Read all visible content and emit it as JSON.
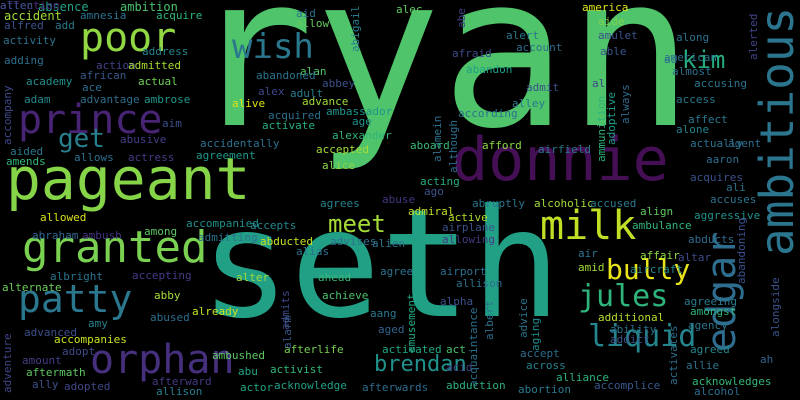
{
  "words": [
    {
      "text": "ryan",
      "color": "#4fc46a"
    },
    {
      "text": "seth",
      "color": "#21a086"
    },
    {
      "text": "pageant",
      "color": "#86d549"
    },
    {
      "text": "donnie",
      "color": "#440f54"
    },
    {
      "text": "ambitious",
      "color": "#2b768e"
    },
    {
      "text": "edgar",
      "color": "#2e6d8e"
    },
    {
      "text": "granted",
      "color": "#7ad151"
    },
    {
      "text": "prince",
      "color": "#482475"
    },
    {
      "text": "patty",
      "color": "#2a778e"
    },
    {
      "text": "orphan",
      "color": "#46307e"
    },
    {
      "text": "poor",
      "color": "#90d743"
    },
    {
      "text": "wish",
      "color": "#2a788e"
    },
    {
      "text": "milk",
      "color": "#c0df25"
    },
    {
      "text": "liquid",
      "color": "#25858e"
    },
    {
      "text": "jules",
      "color": "#2fb47c"
    },
    {
      "text": "bully",
      "color": "#e7e419"
    },
    {
      "text": "meet",
      "color": "#a5db36"
    },
    {
      "text": "get",
      "color": "#277f8e"
    },
    {
      "text": "kim",
      "color": "#25ac82"
    },
    {
      "text": "brendan",
      "color": "#21918c"
    },
    {
      "text": "absence",
      "color": "#20a386"
    },
    {
      "text": "ambition",
      "color": "#4ac16d"
    },
    {
      "text": "accident",
      "color": "#a2da37"
    },
    {
      "text": "alfred",
      "color": "#3b528b"
    },
    {
      "text": "add",
      "color": "#2a788e"
    },
    {
      "text": "activity",
      "color": "#2c728e"
    },
    {
      "text": "adding",
      "color": "#2d708e"
    },
    {
      "text": "academy",
      "color": "#21918c"
    },
    {
      "text": "adam",
      "color": "#24878e"
    },
    {
      "text": "accompany",
      "color": "#3e4a89"
    },
    {
      "text": "aided",
      "color": "#2a788e"
    },
    {
      "text": "amends",
      "color": "#35b779"
    },
    {
      "text": "alive",
      "color": "#dde318"
    },
    {
      "text": "allowed",
      "color": "#d8e219"
    },
    {
      "text": "abraham",
      "color": "#31688e"
    },
    {
      "text": "ambush",
      "color": "#453581"
    },
    {
      "text": "albright",
      "color": "#2c738e"
    },
    {
      "text": "alternate",
      "color": "#6ccd5a"
    },
    {
      "text": "advanced",
      "color": "#3c4f8a"
    },
    {
      "text": "amount",
      "color": "#433e85"
    },
    {
      "text": "adventure",
      "color": "#414487"
    },
    {
      "text": "aftermath",
      "color": "#5ec962"
    },
    {
      "text": "ally",
      "color": "#3b528b"
    },
    {
      "text": "adopted",
      "color": "#404688"
    },
    {
      "text": "adopt",
      "color": "#3e4c8a"
    },
    {
      "text": "accompanies",
      "color": "#cae11f"
    },
    {
      "text": "amy",
      "color": "#26828e"
    },
    {
      "text": "afterward",
      "color": "#443a83"
    },
    {
      "text": "allison",
      "color": "#287d8e"
    },
    {
      "text": "aid",
      "color": "#2c718e"
    },
    {
      "text": "allow",
      "color": "#63cb5f"
    },
    {
      "text": "abigail",
      "color": "#27808e"
    },
    {
      "text": "alec",
      "color": "#60ca60"
    },
    {
      "text": "abe",
      "color": "#424086"
    },
    {
      "text": "america",
      "color": "#dae319"
    },
    {
      "text": "aide",
      "color": "#7fd34e"
    },
    {
      "text": "amulet",
      "color": "#3b528b"
    },
    {
      "text": "able",
      "color": "#39558c"
    },
    {
      "text": "alerted",
      "color": "#404588"
    },
    {
      "text": "acquire",
      "color": "#2fb47c"
    },
    {
      "text": "amnesia",
      "color": "#2c728e"
    },
    {
      "text": "african",
      "color": "#38588c"
    },
    {
      "text": "ace",
      "color": "#2e6d8e"
    },
    {
      "text": "advantage",
      "color": "#2e6e8e"
    },
    {
      "text": "action",
      "color": "#414487"
    },
    {
      "text": "admitted",
      "color": "#a8db34"
    },
    {
      "text": "actual",
      "color": "#70cf57"
    },
    {
      "text": "ambrose",
      "color": "#1f978b"
    },
    {
      "text": "address",
      "color": "#26828e"
    },
    {
      "text": "aim",
      "color": "#3b518b"
    },
    {
      "text": "abusive",
      "color": "#424086"
    },
    {
      "text": "actress",
      "color": "#443b84"
    },
    {
      "text": "allows",
      "color": "#2e6f8e"
    },
    {
      "text": "aging",
      "color": "#23898e"
    },
    {
      "text": "among",
      "color": "#5ec962"
    },
    {
      "text": "accompanied",
      "color": "#21908d"
    },
    {
      "text": "admitting",
      "color": "#2c728e"
    },
    {
      "text": "accepting",
      "color": "#443b84"
    },
    {
      "text": "abused",
      "color": "#2e6e8e"
    },
    {
      "text": "abby",
      "color": "#a5db36"
    },
    {
      "text": "affection",
      "color": "#472d7b"
    },
    {
      "text": "allen",
      "color": "#3b528b"
    },
    {
      "text": "already",
      "color": "#c8e020"
    },
    {
      "text": "admits",
      "color": "#3e4989"
    },
    {
      "text": "ambushed",
      "color": "#5dc863"
    },
    {
      "text": "abu",
      "color": "#22a785"
    },
    {
      "text": "actor",
      "color": "#21a585"
    },
    {
      "text": "acknowledge",
      "color": "#1fa088"
    },
    {
      "text": "activist",
      "color": "#35b779"
    },
    {
      "text": "afterlife",
      "color": "#75d054"
    },
    {
      "text": "alarm",
      "color": "#38588c"
    },
    {
      "text": "abbey",
      "color": "#3b528b"
    },
    {
      "text": "alan",
      "color": "#56c667"
    },
    {
      "text": "alex",
      "color": "#3f4889"
    },
    {
      "text": "adult",
      "color": "#297b8e"
    },
    {
      "text": "abandoned",
      "color": "#2c728e"
    },
    {
      "text": "ambassador",
      "color": "#1f958b"
    },
    {
      "text": "advance",
      "color": "#a0da39"
    },
    {
      "text": "acquired",
      "color": "#2d708e"
    },
    {
      "text": "activate",
      "color": "#28ae80"
    },
    {
      "text": "age",
      "color": "#20928c"
    },
    {
      "text": "alexander",
      "color": "#31b57b"
    },
    {
      "text": "accidentally",
      "color": "#2d708e"
    },
    {
      "text": "agreement",
      "color": "#1f998a"
    },
    {
      "text": "alice",
      "color": "#8bd646"
    },
    {
      "text": "accepted",
      "color": "#a5db36"
    },
    {
      "text": "acting",
      "color": "#26ad81"
    },
    {
      "text": "ago",
      "color": "#3b528b"
    },
    {
      "text": "agrees",
      "color": "#26828e"
    },
    {
      "text": "abuse",
      "color": "#46337f"
    },
    {
      "text": "admiral",
      "color": "#c2df23"
    },
    {
      "text": "accepts",
      "color": "#24878e"
    },
    {
      "text": "abducted",
      "color": "#c5e021"
    },
    {
      "text": "advises",
      "color": "#2e6e8e"
    },
    {
      "text": "alias",
      "color": "#2c718e"
    },
    {
      "text": "ahead",
      "color": "#37b878"
    },
    {
      "text": "alter",
      "color": "#a0da39"
    },
    {
      "text": "agree",
      "color": "#2c738e"
    },
    {
      "text": "achieve",
      "color": "#4ac16d"
    },
    {
      "text": "aang",
      "color": "#2a788e"
    },
    {
      "text": "aged",
      "color": "#33638d"
    },
    {
      "text": "alien",
      "color": "#2c738e"
    },
    {
      "text": "activated",
      "color": "#22a884"
    },
    {
      "text": "afterwards",
      "color": "#2f6c8e"
    },
    {
      "text": "amusement",
      "color": "#22a884"
    },
    {
      "text": "abandon",
      "color": "#1fa188"
    },
    {
      "text": "afraid",
      "color": "#3e4a89"
    },
    {
      "text": "alert",
      "color": "#2a788e"
    },
    {
      "text": "account",
      "color": "#2f6c8e"
    },
    {
      "text": "admit",
      "color": "#3b528b"
    },
    {
      "text": "alley",
      "color": "#2a788e"
    },
    {
      "text": "according",
      "color": "#2c728e"
    },
    {
      "text": "alamein",
      "color": "#2d708e"
    },
    {
      "text": "although",
      "color": "#2e6e8e"
    },
    {
      "text": "al",
      "color": "#404588"
    },
    {
      "text": "ammunition",
      "color": "#2fb47c"
    },
    {
      "text": "adoptive",
      "color": "#1f9a8a"
    },
    {
      "text": "always",
      "color": "#2f6b8e"
    },
    {
      "text": "aboard",
      "color": "#37b878"
    },
    {
      "text": "afford",
      "color": "#8bd646"
    },
    {
      "text": "airfield",
      "color": "#2b758e"
    },
    {
      "text": "abruptly",
      "color": "#2c738e"
    },
    {
      "text": "alcoholic",
      "color": "#a0da39"
    },
    {
      "text": "accused",
      "color": "#2a788e"
    },
    {
      "text": "active",
      "color": "#b2dd2d"
    },
    {
      "text": "airplane",
      "color": "#3b528b"
    },
    {
      "text": "allowing",
      "color": "#443b84"
    },
    {
      "text": "align",
      "color": "#60ca60"
    },
    {
      "text": "ambulance",
      "color": "#31b57b"
    },
    {
      "text": "affair",
      "color": "#8fd744"
    },
    {
      "text": "air",
      "color": "#2c728e"
    },
    {
      "text": "aircraft",
      "color": "#24878e"
    },
    {
      "text": "altar",
      "color": "#3e4989"
    },
    {
      "text": "airport",
      "color": "#2e6e8e"
    },
    {
      "text": "allison2",
      "color": "#2e6e8e"
    },
    {
      "text": "alpha",
      "color": "#3b528b"
    },
    {
      "text": "albert",
      "color": "#2d708e"
    },
    {
      "text": "advice",
      "color": "#2c738e"
    },
    {
      "text": "acquaintance",
      "color": "#2d708e"
    },
    {
      "text": "act",
      "color": "#4ac16d"
    },
    {
      "text": "accept",
      "color": "#2e6d8e"
    },
    {
      "text": "across",
      "color": "#26828e"
    },
    {
      "text": "alliance",
      "color": "#2fb47c"
    },
    {
      "text": "abortion",
      "color": "#2a788e"
    },
    {
      "text": "acid",
      "color": "#404588"
    },
    {
      "text": "abduction",
      "color": "#2cb17e"
    },
    {
      "text": "amid",
      "color": "#a2da37"
    },
    {
      "text": "additional",
      "color": "#b5de2b"
    },
    {
      "text": "addict",
      "color": "#3b528b"
    },
    {
      "text": "accomplice",
      "color": "#38588c"
    },
    {
      "text": "ability",
      "color": "#2c728e"
    },
    {
      "text": "activates",
      "color": "#2e6e8e"
    },
    {
      "text": "agreeing",
      "color": "#2a788e"
    },
    {
      "text": "amongst",
      "color": "#2fb47c"
    },
    {
      "text": "agency",
      "color": "#2c738e"
    },
    {
      "text": "agreed",
      "color": "#24878e"
    },
    {
      "text": "allie",
      "color": "#2c728e"
    },
    {
      "text": "acknowledges",
      "color": "#35b779"
    },
    {
      "text": "alcohol",
      "color": "#2e6d8e"
    },
    {
      "text": "ah",
      "color": "#32658e"
    },
    {
      "text": "alongside",
      "color": "#3b528b"
    },
    {
      "text": "abducts",
      "color": "#2f6b8e"
    },
    {
      "text": "aggressive",
      "color": "#21918c"
    },
    {
      "text": "accuses",
      "color": "#2c728e"
    },
    {
      "text": "acquires",
      "color": "#3b518b"
    },
    {
      "text": "ali",
      "color": "#2d708e"
    },
    {
      "text": "aaron",
      "color": "#2e6e8e"
    },
    {
      "text": "actually",
      "color": "#2c738e"
    },
    {
      "text": "agent",
      "color": "#2e6d8e"
    },
    {
      "text": "alone",
      "color": "#26828e"
    },
    {
      "text": "affect",
      "color": "#2a788e"
    },
    {
      "text": "access",
      "color": "#2a788e"
    },
    {
      "text": "accusing",
      "color": "#2c738e"
    },
    {
      "text": "almost",
      "color": "#2d708e"
    },
    {
      "text": "american",
      "color": "#2c728e"
    },
    {
      "text": "ad",
      "color": "#2e6d8e"
    },
    {
      "text": "along",
      "color": "#2c728e"
    },
    {
      "text": "abandoning",
      "color": "#3b518b"
    }
  ]
}
